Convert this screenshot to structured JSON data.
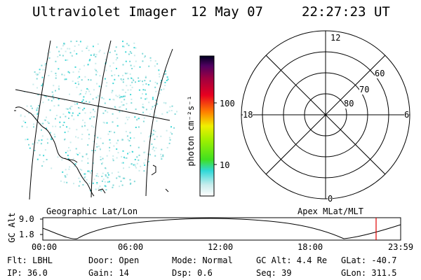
{
  "header": {
    "instrument": "Ultraviolet Imager",
    "date": "12 May 07",
    "time": "22:27:23 UT"
  },
  "colorbar": {
    "unit_label": "photon cm⁻²s⁻¹",
    "ticks": [
      "100",
      "10"
    ]
  },
  "polar": {
    "mlt_labels": {
      "top": "12",
      "bottom": "0",
      "left": "18",
      "right": "6"
    },
    "lat_labels": [
      "60",
      "70",
      "80"
    ]
  },
  "map_labels": {
    "left": "Geographic Lat/Lon",
    "right": "Apex MLat/MLT"
  },
  "altitude_plot": {
    "ylabel": "GC Alt",
    "yticks": [
      "9.0",
      "1.8"
    ],
    "xticks": [
      "00:00",
      "06:00",
      "12:00",
      "18:00",
      "23:59"
    ],
    "current_time_marker": "22:27"
  },
  "info": {
    "filter": "Flt: LBHL",
    "ip": "IP: 36.0",
    "door": "Door: Open",
    "gain": "Gain: 14",
    "mode": "Mode: Normal",
    "dsp": "Dsp:    0.6",
    "gcalt": "GC Alt: 4.4 Re",
    "seq": "Seq: 39",
    "glat": "GLat: -40.7",
    "glon": "GLon: 311.5"
  },
  "colors": {
    "dots": "#7fd8d8",
    "marker": "#e00000"
  }
}
